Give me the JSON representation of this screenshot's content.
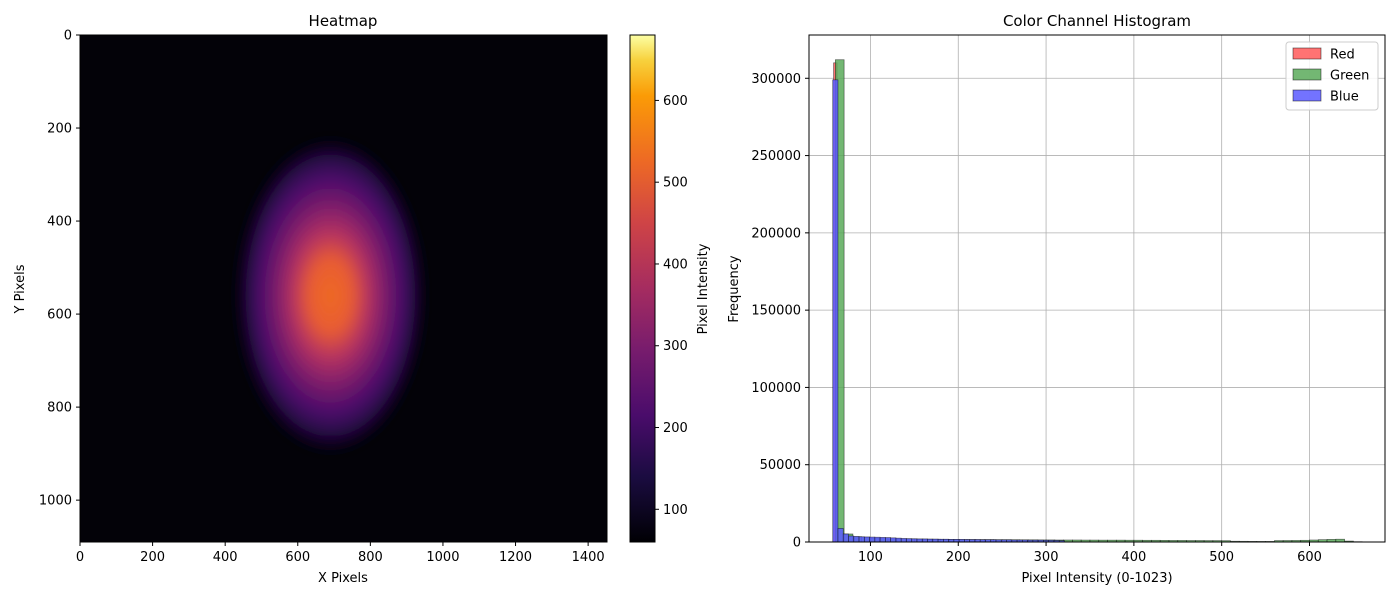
{
  "chart_data": [
    {
      "type": "heatmap",
      "title": "Heatmap",
      "xlabel": "X Pixels",
      "ylabel": "Y Pixels",
      "xlim": [
        0,
        1452
      ],
      "ylim": [
        1090,
        0
      ],
      "xticks": [
        0,
        200,
        400,
        600,
        800,
        1000,
        1200,
        1400
      ],
      "yticks": [
        0,
        200,
        400,
        600,
        800,
        1000
      ],
      "colormap": "plasma",
      "background_value": 60,
      "blob": {
        "center_x": 690,
        "center_y": 560,
        "radius_x": 270,
        "radius_y": 350,
        "core_value": 480
      },
      "colorbar": {
        "label": "Pixel Intensity",
        "range": [
          60,
          680
        ],
        "ticks": [
          100,
          200,
          300,
          400,
          500,
          600
        ]
      }
    },
    {
      "type": "bar",
      "title": "Color Channel Histogram",
      "xlabel": "Pixel Intensity (0-1023)",
      "ylabel": "Frequency",
      "xlim": [
        30,
        686
      ],
      "ylim": [
        0,
        328000
      ],
      "xticks": [
        100,
        200,
        300,
        400,
        500,
        600
      ],
      "yticks": [
        0,
        50000,
        100000,
        150000,
        200000,
        250000,
        300000
      ],
      "grid": true,
      "legend_position": "top-right",
      "series": [
        {
          "name": "Red",
          "color": "#ff5a5a",
          "bins": [
            [
              58,
              62,
              310000
            ]
          ]
        },
        {
          "name": "Green",
          "color": "#5aaa5a",
          "bins": [
            [
              60,
              70,
              312000
            ],
            [
              70,
              80,
              5200
            ],
            [
              80,
              90,
              3400
            ],
            [
              90,
              100,
              2900
            ],
            [
              100,
              110,
              2500
            ],
            [
              110,
              120,
              2300
            ],
            [
              120,
              130,
              2100
            ],
            [
              130,
              140,
              2000
            ],
            [
              140,
              150,
              1900
            ],
            [
              150,
              160,
              1850
            ],
            [
              160,
              170,
              1800
            ],
            [
              170,
              180,
              1750
            ],
            [
              180,
              190,
              1700
            ],
            [
              190,
              200,
              1650
            ],
            [
              200,
              210,
              1600
            ],
            [
              210,
              220,
              1600
            ],
            [
              220,
              230,
              1550
            ],
            [
              230,
              240,
              1550
            ],
            [
              240,
              250,
              1500
            ],
            [
              250,
              260,
              1500
            ],
            [
              260,
              270,
              1450
            ],
            [
              270,
              280,
              1400
            ],
            [
              280,
              290,
              1400
            ],
            [
              290,
              300,
              1350
            ],
            [
              300,
              310,
              1350
            ],
            [
              310,
              320,
              1300
            ],
            [
              320,
              330,
              1300
            ],
            [
              330,
              340,
              1300
            ],
            [
              340,
              350,
              1250
            ],
            [
              350,
              360,
              1250
            ],
            [
              360,
              370,
              1200
            ],
            [
              370,
              380,
              1200
            ],
            [
              380,
              390,
              1200
            ],
            [
              390,
              400,
              1150
            ],
            [
              400,
              410,
              1150
            ],
            [
              410,
              420,
              1100
            ],
            [
              420,
              430,
              1100
            ],
            [
              430,
              440,
              1050
            ],
            [
              440,
              450,
              1000
            ],
            [
              450,
              460,
              1000
            ],
            [
              460,
              470,
              950
            ],
            [
              470,
              480,
              950
            ],
            [
              480,
              490,
              900
            ],
            [
              490,
              500,
              900
            ],
            [
              500,
              510,
              850
            ],
            [
              510,
              520,
              500
            ],
            [
              520,
              530,
              450
            ],
            [
              530,
              540,
              420
            ],
            [
              540,
              550,
              400
            ],
            [
              550,
              560,
              400
            ],
            [
              560,
              570,
              900
            ],
            [
              570,
              580,
              950
            ],
            [
              580,
              590,
              1000
            ],
            [
              590,
              600,
              1100
            ],
            [
              600,
              610,
              1300
            ],
            [
              610,
              620,
              1500
            ],
            [
              620,
              630,
              1700
            ],
            [
              630,
              640,
              1800
            ],
            [
              640,
              650,
              600
            ],
            [
              650,
              660,
              200
            ]
          ]
        },
        {
          "name": "Blue",
          "color": "#5a5aff",
          "bins": [
            [
              57,
              63,
              299000
            ],
            [
              63,
              69,
              8800
            ],
            [
              69,
              75,
              5200
            ],
            [
              75,
              81,
              3900
            ],
            [
              81,
              87,
              3600
            ],
            [
              87,
              93,
              3400
            ],
            [
              93,
              99,
              3300
            ],
            [
              99,
              105,
              3200
            ],
            [
              105,
              111,
              3100
            ],
            [
              111,
              117,
              3000
            ],
            [
              117,
              123,
              2900
            ],
            [
              123,
              129,
              2700
            ],
            [
              129,
              135,
              2500
            ],
            [
              135,
              141,
              2300
            ],
            [
              141,
              147,
              2200
            ],
            [
              147,
              153,
              2100
            ],
            [
              153,
              159,
              2000
            ],
            [
              159,
              165,
              2000
            ],
            [
              165,
              171,
              1900
            ],
            [
              171,
              177,
              1900
            ],
            [
              177,
              183,
              1800
            ],
            [
              183,
              189,
              1800
            ],
            [
              189,
              195,
              1700
            ],
            [
              195,
              201,
              1700
            ],
            [
              201,
              207,
              1700
            ],
            [
              207,
              213,
              1600
            ],
            [
              213,
              219,
              1600
            ],
            [
              219,
              225,
              1600
            ],
            [
              225,
              231,
              1500
            ],
            [
              231,
              237,
              1500
            ],
            [
              237,
              243,
              1500
            ],
            [
              243,
              249,
              1400
            ],
            [
              249,
              255,
              1400
            ],
            [
              255,
              261,
              1400
            ],
            [
              261,
              267,
              1300
            ],
            [
              267,
              273,
              1300
            ],
            [
              273,
              279,
              1300
            ],
            [
              279,
              285,
              1200
            ],
            [
              285,
              291,
              1200
            ],
            [
              291,
              297,
              1200
            ],
            [
              297,
              303,
              1100
            ],
            [
              303,
              309,
              1100
            ],
            [
              309,
              315,
              1000
            ],
            [
              315,
              321,
              900
            ]
          ]
        }
      ]
    }
  ]
}
